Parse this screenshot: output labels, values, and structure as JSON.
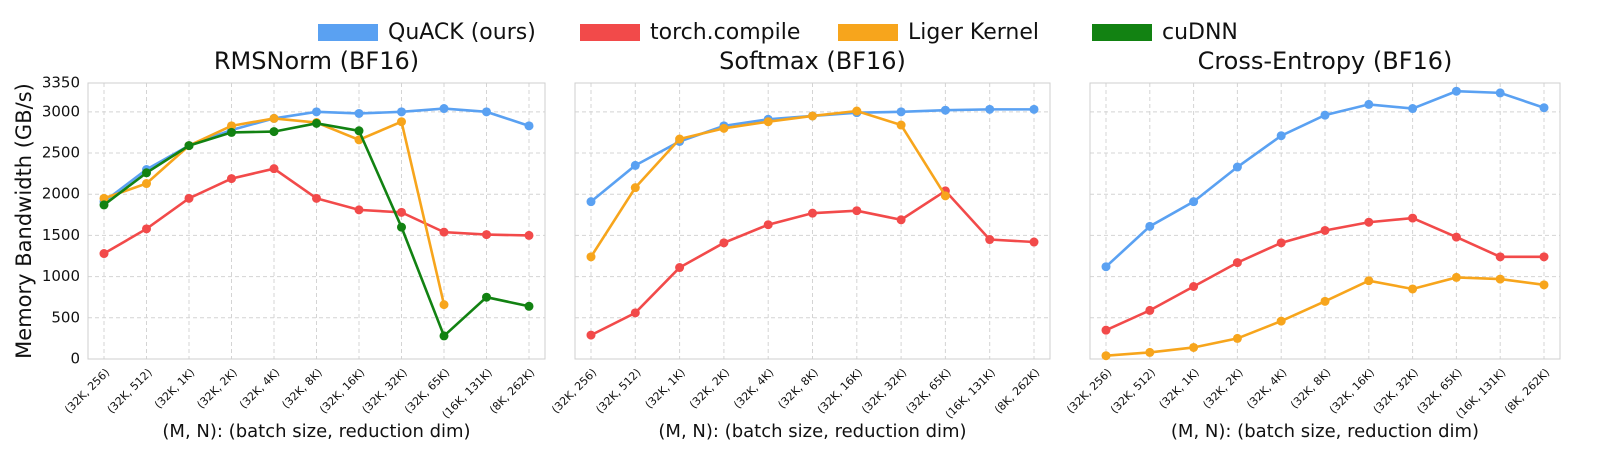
{
  "chart_data": [
    {
      "type": "line",
      "title": "RMSNorm (BF16)",
      "ylabel": "Memory Bandwidth (GB/s)",
      "xlabel": "(M, N): (batch size, reduction dim)",
      "categories": [
        "(32K, 256)",
        "(32K, 512)",
        "(32K, 1K)",
        "(32K, 2K)",
        "(32K, 4K)",
        "(32K, 8K)",
        "(32K, 16K)",
        "(32K, 32K)",
        "(32K, 65K)",
        "(16K, 131K)",
        "(8K, 262K)"
      ],
      "ylim": [
        0,
        3350
      ],
      "yticks": [
        0,
        500,
        1000,
        1500,
        2000,
        2500,
        3000,
        3350
      ],
      "grid": true,
      "series": [
        {
          "name": "QuACK (ours)",
          "color": "#5aa1f2",
          "values": [
            1910,
            2300,
            2590,
            2780,
            2920,
            3000,
            2980,
            3000,
            3040,
            3000,
            2830
          ]
        },
        {
          "name": "torch.compile",
          "color": "#f24a4a",
          "values": [
            1280,
            1580,
            1950,
            2190,
            2310,
            1950,
            1810,
            1780,
            1540,
            1510,
            1500
          ]
        },
        {
          "name": "Liger Kernel",
          "color": "#f7a51c",
          "values": [
            1950,
            2130,
            2590,
            2830,
            2920,
            2870,
            2660,
            2880,
            660,
            null,
            null
          ]
        },
        {
          "name": "cuDNN",
          "color": "#128212",
          "values": [
            1870,
            2260,
            2590,
            2750,
            2760,
            2860,
            2770,
            1600,
            280,
            750,
            640
          ]
        }
      ]
    },
    {
      "type": "line",
      "title": "Softmax (BF16)",
      "xlabel": "(M, N): (batch size, reduction dim)",
      "categories": [
        "(32K, 256)",
        "(32K, 512)",
        "(32K, 1K)",
        "(32K, 2K)",
        "(32K, 4K)",
        "(32K, 8K)",
        "(32K, 16K)",
        "(32K, 32K)",
        "(32K, 65K)",
        "(16K, 131K)",
        "(8K, 262K)"
      ],
      "ylim": [
        0,
        3350
      ],
      "yticks": [
        0,
        500,
        1000,
        1500,
        2000,
        2500,
        3000,
        3350
      ],
      "grid": true,
      "series": [
        {
          "name": "QuACK (ours)",
          "color": "#5aa1f2",
          "values": [
            1910,
            2350,
            2640,
            2830,
            2910,
            2950,
            2990,
            3000,
            3020,
            3030,
            3030
          ]
        },
        {
          "name": "torch.compile",
          "color": "#f24a4a",
          "values": [
            290,
            560,
            1110,
            1410,
            1630,
            1770,
            1800,
            1690,
            2040,
            1450,
            1420
          ]
        },
        {
          "name": "Liger Kernel",
          "color": "#f7a51c",
          "values": [
            1240,
            2080,
            2670,
            2800,
            2880,
            2950,
            3010,
            2840,
            1980,
            null,
            null
          ]
        }
      ]
    },
    {
      "type": "line",
      "title": "Cross-Entropy (BF16)",
      "xlabel": "(M, N): (batch size, reduction dim)",
      "categories": [
        "(32K, 256)",
        "(32K, 512)",
        "(32K, 1K)",
        "(32K, 2K)",
        "(32K, 4K)",
        "(32K, 8K)",
        "(32K, 16K)",
        "(32K, 32K)",
        "(32K, 65K)",
        "(16K, 131K)",
        "(8K, 262K)"
      ],
      "ylim": [
        0,
        3350
      ],
      "yticks": [
        0,
        500,
        1000,
        1500,
        2000,
        2500,
        3000,
        3350
      ],
      "grid": true,
      "series": [
        {
          "name": "QuACK (ours)",
          "color": "#5aa1f2",
          "values": [
            1120,
            1610,
            1910,
            2330,
            2710,
            2960,
            3090,
            3040,
            3250,
            3230,
            3050
          ]
        },
        {
          "name": "torch.compile",
          "color": "#f24a4a",
          "values": [
            350,
            590,
            880,
            1170,
            1410,
            1560,
            1660,
            1710,
            1480,
            1240,
            1240
          ]
        },
        {
          "name": "Liger Kernel",
          "color": "#f7a51c",
          "values": [
            40,
            80,
            140,
            250,
            460,
            700,
            950,
            850,
            990,
            970,
            900
          ]
        }
      ]
    }
  ]
}
